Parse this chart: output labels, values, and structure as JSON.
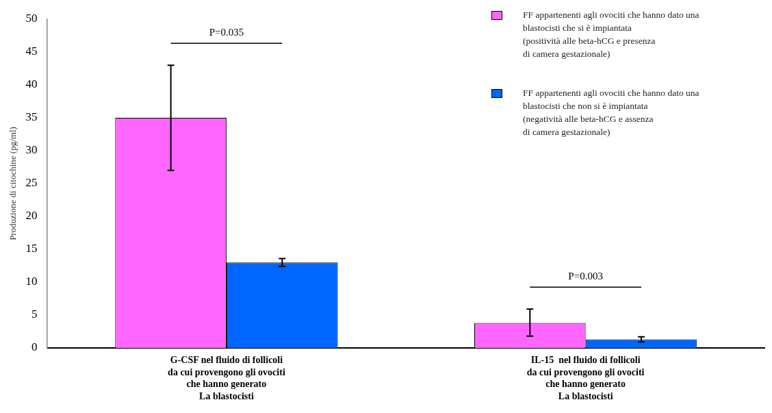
{
  "chart_data": {
    "type": "bar",
    "ylabel": "Produzione di citochine (pg/ml)",
    "categories": [
      "G-CSF nel fluido di follicoli\nda cui provengono gli ovociti\nche hanno generato\nLa blastocisti",
      "IL-15  nel fluido di follicoli\nda cui provengono gli ovociti\nche hanno generato\nLa blastocisti"
    ],
    "series": [
      {
        "name": "FF appartenenti agli ovociti che hanno dato una\n blastocisti che si è impiantata\n (positività alle beta-hCG e presenza\ndi camera gestazionale)",
        "color": "#ff66ff",
        "values": [
          35,
          3.8
        ],
        "errors": [
          [
            27,
            43
          ],
          [
            1.8,
            5.9
          ]
        ]
      },
      {
        "name": "FF appartenenti agli ovociti che hanno dato una\n blastocisti che non si è impiantata\n (negatività alle beta-hCG e assenza\ndi camera gestazionale)",
        "color": "#0066ff",
        "values": [
          13,
          1.3
        ],
        "errors": [
          [
            12.4,
            13.6
          ],
          [
            0.9,
            1.7
          ]
        ]
      }
    ],
    "ylim": [
      0,
      50
    ],
    "yticks": [
      0,
      5,
      10,
      15,
      20,
      25,
      30,
      35,
      40,
      45,
      50
    ],
    "grid": false,
    "legend": "top right",
    "annotations": [
      "P=0.035",
      "P=0.003"
    ]
  }
}
